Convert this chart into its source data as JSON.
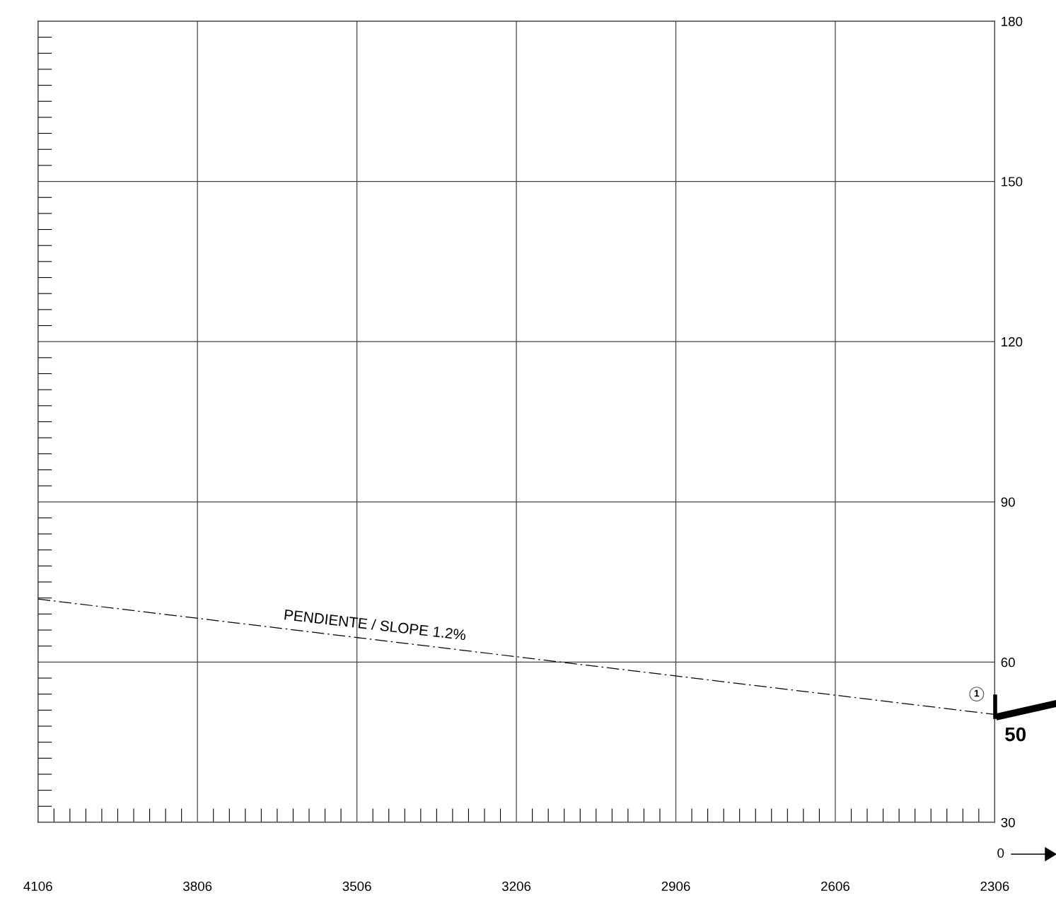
{
  "chart_data": {
    "type": "line",
    "x": [
      4106,
      2306
    ],
    "series": [
      {
        "color": "#000000",
        "values": [
          71.8,
          50.2
        ],
        "line_style": "dashdot"
      }
    ],
    "xlim": [
      4106,
      2306
    ],
    "xticks": [
      4106,
      3806,
      3506,
      3206,
      2906,
      2606,
      2306
    ],
    "ylim": [
      30,
      180
    ],
    "yticks": [
      30,
      60,
      90,
      120,
      150,
      180
    ],
    "grid": true,
    "marker": "none",
    "annotations": [
      "PENDIENTE / SLOPE 1.2%",
      {
        "text": "1",
        "x": 2340,
        "y": 54
      },
      {
        "text": "50",
        "x": 2306,
        "y": 50.2
      },
      "0"
    ]
  }
}
